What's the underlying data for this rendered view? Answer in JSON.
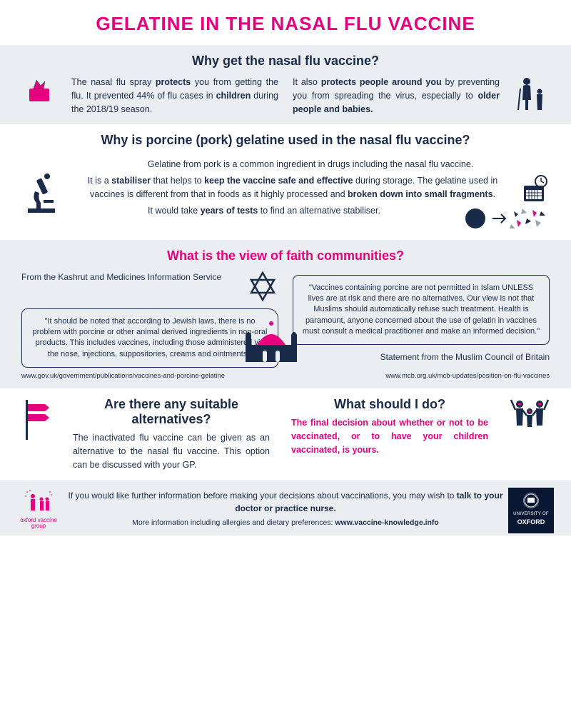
{
  "colors": {
    "pink": "#e6007e",
    "navy": "#1a2b4a",
    "gray_bg": "#ebeef0",
    "white": "#ffffff"
  },
  "title": "GELATINE IN THE NASAL FLU VACCINE",
  "section1": {
    "heading": "Why get the nasal flu vaccine?",
    "left_html": "The nasal flu spray <b>protects</b> you from getting the flu. It prevented 44% of flu cases in <b>children</b> during the 2018/19 season.",
    "right_html": "It also <b>protects people around you</b> by preventing you from spreading the virus, especially to <b>older people and babies.</b>"
  },
  "section2": {
    "heading": "Why is porcine (pork) gelatine used in the nasal flu vaccine?",
    "line1": "Gelatine from pork is a common ingredient in drugs including the nasal flu vaccine.",
    "line2_html": "It is a <b>stabiliser</b> that helps to <b>keep the vaccine safe and effective</b> during storage. The gelatine used in vaccines is different from that in foods as it highly processed and <b>broken down into small fragments</b>.",
    "line3_html": "It would take <b>years of tests</b> to find an alternative stabiliser."
  },
  "section3": {
    "heading": "What is the view of faith communities?",
    "jewish": {
      "source": "From the Kashrut and Medicines Information Service",
      "quote": "\"It should be noted that according to Jewish laws, there is no problem with porcine or other animal derived ingredients in non-oral products. This includes vaccines, including those administered via the nose, injections, suppositories, creams and ointments.\"",
      "url": "www.gov.uk/government/publications/vaccines-and-porcine-gelatine"
    },
    "muslim": {
      "quote": "\"Vaccines containing porcine are not permitted in Islam UNLESS lives are at risk and there are no alternatives. Our view is not that Muslims should automatically refuse such treatment. Health is paramount, anyone concerned about the use of gelatin in vaccines must consult a medical practitioner and make an informed decision.\"",
      "source": "Statement from the Muslim Council of Britain",
      "url": "www.mcb.org.uk/mcb-updates/position-on-flu-vaccines"
    }
  },
  "section4": {
    "alt_heading": "Are there any suitable alternatives?",
    "alt_text": "The inactivated flu vaccine can be given as an alternative to the nasal flu vaccine. This option can be discussed with your GP.",
    "do_heading": "What should I do?",
    "do_text": "The final decision about whether or not to be vaccinated, or to have your children vaccinated, is yours."
  },
  "footer": {
    "line1_html": "If you would like further information before making your decisions about vaccinations, you may wish to <b>talk to your doctor or practice nurse.</b>",
    "line2_html": "More information including allergies and dietary preferences: <b>www.vaccine-knowledge.info</b>",
    "oxford": "UNIVERSITY OF\nOXFORD",
    "ovg": "oxford vaccine group"
  }
}
